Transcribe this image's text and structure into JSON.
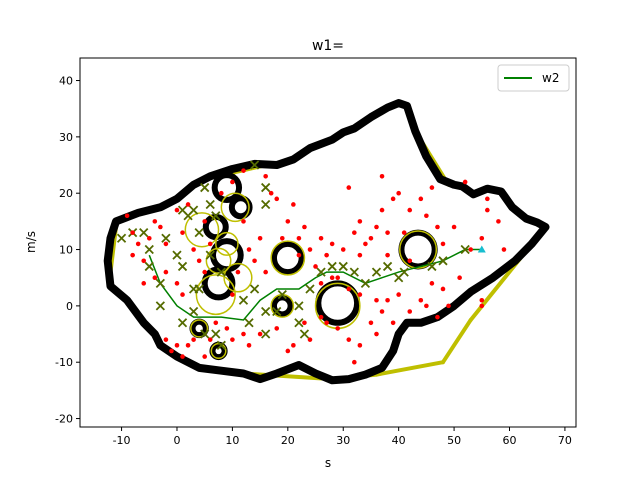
{
  "chart_data": {
    "type": "scatter",
    "title": "w1=",
    "xlabel": "s",
    "ylabel": "m/s",
    "xlim": [
      -17.5,
      72
    ],
    "ylim": [
      -21.5,
      44
    ],
    "xticks": [
      -10,
      0,
      10,
      20,
      30,
      40,
      50,
      60,
      70
    ],
    "yticks": [
      -20,
      -10,
      0,
      10,
      20,
      30,
      40
    ],
    "legend": {
      "placement": "top-right",
      "entries": [
        "w2"
      ]
    },
    "colors": {
      "path": "#008000",
      "boundary": "#000000",
      "hull": "#bfbf00",
      "points": "#ff0000",
      "cross": "#556b00",
      "goal": "#17becf"
    },
    "boundary_outer": [
      [
        -12,
        3.5
      ],
      [
        -12.5,
        8
      ],
      [
        -12,
        12
      ],
      [
        -11,
        15
      ],
      [
        -7,
        16.5
      ],
      [
        -3,
        17.5
      ],
      [
        0,
        19
      ],
      [
        3,
        21.5
      ],
      [
        6,
        23
      ],
      [
        10,
        24.3
      ],
      [
        14,
        25.2
      ],
      [
        18,
        25
      ],
      [
        21,
        26
      ],
      [
        24,
        28
      ],
      [
        28,
        29.5
      ],
      [
        30,
        30.8
      ],
      [
        32,
        31.5
      ],
      [
        35,
        33.5
      ],
      [
        38,
        35.2
      ],
      [
        40,
        36
      ],
      [
        41.5,
        35.5
      ],
      [
        43,
        31
      ],
      [
        45,
        26.5
      ],
      [
        47.5,
        22.5
      ],
      [
        50,
        21.5
      ],
      [
        51.5,
        21.2
      ],
      [
        53.5,
        19.8
      ],
      [
        56,
        20.8
      ],
      [
        58.5,
        20.3
      ],
      [
        60.5,
        17.5
      ],
      [
        63,
        15.5
      ],
      [
        65,
        14.8
      ],
      [
        66.5,
        14
      ],
      [
        64,
        11
      ],
      [
        61,
        8
      ],
      [
        57,
        5
      ],
      [
        53,
        2.5
      ],
      [
        50,
        0
      ],
      [
        47,
        -2
      ],
      [
        44,
        -3
      ],
      [
        41.5,
        -3
      ],
      [
        40,
        -5
      ],
      [
        39,
        -8
      ],
      [
        37,
        -11
      ],
      [
        34,
        -12.2
      ],
      [
        31,
        -13
      ],
      [
        28,
        -13.2
      ],
      [
        25,
        -12
      ],
      [
        22,
        -10.5
      ],
      [
        18,
        -12
      ],
      [
        15,
        -13
      ],
      [
        12,
        -12
      ],
      [
        8,
        -11.5
      ],
      [
        4,
        -11
      ],
      [
        0,
        -9
      ],
      [
        -3,
        -7
      ],
      [
        -4,
        -5
      ],
      [
        -6,
        -3
      ],
      [
        -9,
        1
      ],
      [
        -12,
        3.5
      ]
    ],
    "hull_edges": [
      [
        [
          5,
          22.5
        ],
        [
          17,
          25.2
        ]
      ],
      [
        [
          43,
          31
        ],
        [
          49,
          21.5
        ]
      ],
      [
        [
          66.5,
          14
        ],
        [
          53,
          -2.5
        ]
      ],
      [
        [
          53,
          -2.5
        ],
        [
          48,
          -10
        ]
      ],
      [
        [
          48,
          -10
        ],
        [
          36,
          -12.2
        ]
      ],
      [
        [
          36,
          -12.2
        ],
        [
          28,
          -13
        ]
      ],
      [
        [
          28,
          -13
        ],
        [
          12,
          -12
        ]
      ],
      [
        [
          -12,
          6
        ],
        [
          -11,
          14
        ]
      ]
    ],
    "obstacles": [
      {
        "x": 9,
        "y": 21,
        "r": 2.2
      },
      {
        "x": 11.5,
        "y": 17.5,
        "r": 1.6
      },
      {
        "x": 7,
        "y": 14,
        "r": 1.8
      },
      {
        "x": 9,
        "y": 9,
        "r": 2.5
      },
      {
        "x": 7.5,
        "y": 4,
        "r": 2.5
      },
      {
        "x": 20,
        "y": 8.5,
        "r": 2.5
      },
      {
        "x": 19,
        "y": 0,
        "r": 1.5
      },
      {
        "x": 29,
        "y": 0.5,
        "r": 3.5
      },
      {
        "x": 43.5,
        "y": 10,
        "r": 3
      },
      {
        "x": 4,
        "y": -4,
        "r": 1.2
      },
      {
        "x": 7.5,
        "y": -8,
        "r": 1.1
      }
    ],
    "bubbles": [
      {
        "x": 4.5,
        "y": 13.5,
        "r": 3
      },
      {
        "x": 10.5,
        "y": 17.5,
        "r": 2.5
      },
      {
        "x": 9,
        "y": 11,
        "r": 2
      },
      {
        "x": 7.5,
        "y": 8,
        "r": 2.2
      },
      {
        "x": 11,
        "y": 5,
        "r": 2.5
      },
      {
        "x": 7,
        "y": 2,
        "r": 3.5
      },
      {
        "x": 20,
        "y": 8.5,
        "r": 3
      },
      {
        "x": 19,
        "y": 0,
        "r": 2
      },
      {
        "x": 29,
        "y": 0,
        "r": 4
      },
      {
        "x": 43.5,
        "y": 10,
        "r": 3.3
      },
      {
        "x": 4,
        "y": -4,
        "r": 1.5
      },
      {
        "x": 7.5,
        "y": -8,
        "r": 1.3
      }
    ],
    "series": [
      {
        "name": "w2",
        "type": "line",
        "points": [
          [
            -5,
            9
          ],
          [
            -3,
            4
          ],
          [
            0,
            0
          ],
          [
            3,
            -2
          ],
          [
            8,
            -2
          ],
          [
            12,
            -2.5
          ],
          [
            15,
            1
          ],
          [
            18,
            3
          ],
          [
            22,
            3
          ],
          [
            25,
            5
          ],
          [
            27,
            6
          ],
          [
            30,
            6
          ],
          [
            34,
            4
          ],
          [
            37,
            5
          ],
          [
            40,
            6
          ],
          [
            44,
            7
          ],
          [
            48,
            8
          ],
          [
            52,
            10
          ],
          [
            55,
            10
          ]
        ]
      },
      {
        "type": "scatter",
        "marker": "x",
        "points": [
          [
            -10,
            12
          ],
          [
            -8,
            13
          ],
          [
            -6,
            13
          ],
          [
            -5,
            10
          ],
          [
            -5,
            7
          ],
          [
            -3,
            4
          ],
          [
            -2,
            12
          ],
          [
            0,
            9
          ],
          [
            1,
            7
          ],
          [
            1,
            17
          ],
          [
            2,
            16
          ],
          [
            3,
            17
          ],
          [
            4,
            13
          ],
          [
            5,
            21
          ],
          [
            6,
            18
          ],
          [
            7,
            16
          ],
          [
            14,
            25
          ],
          [
            16,
            21
          ],
          [
            16,
            18
          ],
          [
            6,
            9
          ],
          [
            8,
            6
          ],
          [
            4,
            3
          ],
          [
            3,
            -1
          ],
          [
            1,
            -3
          ],
          [
            5,
            -5
          ],
          [
            7,
            -5
          ],
          [
            8,
            -7
          ],
          [
            13,
            -3
          ],
          [
            16,
            -1
          ],
          [
            16,
            -5
          ],
          [
            18,
            -1
          ],
          [
            19,
            2
          ],
          [
            22,
            0
          ],
          [
            22,
            -3
          ],
          [
            23,
            -5
          ],
          [
            24,
            3
          ],
          [
            26,
            6
          ],
          [
            28,
            7
          ],
          [
            30,
            7
          ],
          [
            32,
            6
          ],
          [
            34,
            4
          ],
          [
            36,
            6
          ],
          [
            38,
            7
          ],
          [
            40,
            5
          ],
          [
            41,
            6
          ],
          [
            46,
            7
          ],
          [
            48,
            8
          ],
          [
            52,
            10
          ],
          [
            3,
            3
          ],
          [
            12,
            1
          ],
          [
            -3,
            0
          ],
          [
            14,
            3
          ]
        ]
      },
      {
        "type": "scatter",
        "marker": "dot",
        "points": [
          [
            -9,
            16
          ],
          [
            -8,
            13
          ],
          [
            -7,
            11
          ],
          [
            -6,
            8
          ],
          [
            -5,
            12
          ],
          [
            -4,
            15
          ],
          [
            -3,
            14
          ],
          [
            -2,
            11
          ],
          [
            0,
            17
          ],
          [
            1,
            13
          ],
          [
            2,
            18
          ],
          [
            3,
            10
          ],
          [
            4,
            8
          ],
          [
            5,
            15
          ],
          [
            6,
            11
          ],
          [
            5,
            6
          ],
          [
            8,
            20
          ],
          [
            10,
            22
          ],
          [
            12,
            24
          ],
          [
            16,
            23
          ],
          [
            17,
            20
          ],
          [
            18,
            19
          ],
          [
            19,
            12
          ],
          [
            20,
            15
          ],
          [
            21,
            18
          ],
          [
            22,
            12
          ],
          [
            22,
            9
          ],
          [
            23,
            14
          ],
          [
            24,
            10
          ],
          [
            25,
            7
          ],
          [
            26,
            12
          ],
          [
            27,
            9
          ],
          [
            28,
            11
          ],
          [
            29,
            5
          ],
          [
            30,
            10
          ],
          [
            31,
            21
          ],
          [
            32,
            13
          ],
          [
            33,
            15
          ],
          [
            33,
            9
          ],
          [
            34,
            11
          ],
          [
            35,
            12
          ],
          [
            36,
            14
          ],
          [
            37,
            17
          ],
          [
            37,
            23
          ],
          [
            38,
            13
          ],
          [
            38,
            9
          ],
          [
            39,
            19
          ],
          [
            40,
            20
          ],
          [
            41,
            13
          ],
          [
            42,
            17
          ],
          [
            42,
            8
          ],
          [
            44,
            19
          ],
          [
            45,
            16
          ],
          [
            46,
            21
          ],
          [
            47,
            14
          ],
          [
            48,
            11
          ],
          [
            50,
            14
          ],
          [
            52,
            22
          ],
          [
            53,
            10
          ],
          [
            55,
            12
          ],
          [
            56,
            17
          ],
          [
            56,
            19
          ],
          [
            58,
            15
          ],
          [
            59,
            10
          ],
          [
            55,
            1
          ],
          [
            55,
            0
          ],
          [
            -2,
            -6
          ],
          [
            -1,
            -8
          ],
          [
            0,
            -7
          ],
          [
            1,
            -9
          ],
          [
            2,
            -7
          ],
          [
            3,
            -6
          ],
          [
            5,
            -9
          ],
          [
            6,
            -6
          ],
          [
            7,
            -3
          ],
          [
            9,
            -4
          ],
          [
            10,
            -6
          ],
          [
            12,
            -5
          ],
          [
            13,
            -7
          ],
          [
            15,
            -5
          ],
          [
            18,
            -4
          ],
          [
            20,
            -8
          ],
          [
            21,
            -7
          ],
          [
            23,
            -3
          ],
          [
            24,
            -6
          ],
          [
            26,
            -2
          ],
          [
            27,
            -3
          ],
          [
            29,
            -4
          ],
          [
            31,
            -6
          ],
          [
            32,
            -10
          ],
          [
            33,
            -7
          ],
          [
            35,
            -3
          ],
          [
            36,
            -5
          ],
          [
            37,
            -1
          ],
          [
            38,
            1
          ],
          [
            39,
            -3
          ],
          [
            40,
            2
          ],
          [
            42,
            -1
          ],
          [
            44,
            1
          ],
          [
            45,
            0
          ],
          [
            46,
            4
          ],
          [
            47,
            -2
          ],
          [
            48,
            3
          ],
          [
            49,
            0
          ],
          [
            51,
            5
          ],
          [
            36,
            1
          ],
          [
            33,
            2
          ],
          [
            31,
            3
          ],
          [
            28,
            5
          ],
          [
            26,
            4
          ],
          [
            14,
            8
          ],
          [
            13,
            10
          ],
          [
            11,
            6
          ],
          [
            10,
            2
          ],
          [
            16,
            6
          ],
          [
            15,
            12
          ],
          [
            12,
            15
          ],
          [
            -4,
            5
          ],
          [
            -2,
            6
          ],
          [
            0,
            4
          ],
          [
            1,
            2
          ],
          [
            -6,
            4
          ],
          [
            -8,
            9
          ]
        ]
      },
      {
        "type": "scatter",
        "marker": "triangle",
        "points": [
          [
            55,
            10
          ]
        ]
      }
    ]
  }
}
